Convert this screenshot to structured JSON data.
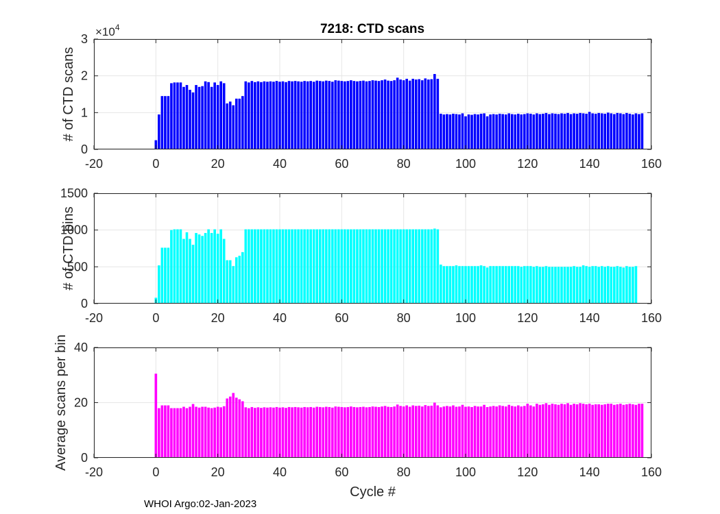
{
  "figure_title": "7218: CTD scans",
  "footer": "WHOI Argo:02-Jan-2023",
  "chart_data": [
    {
      "type": "bar",
      "name": "scans",
      "title": "7218: CTD scans",
      "xlabel": "",
      "ylabel": "# of CTD scans",
      "xlim": [
        -20,
        160
      ],
      "ylim": [
        0,
        3
      ],
      "xticks": [
        -20,
        0,
        20,
        40,
        60,
        80,
        100,
        120,
        140,
        160
      ],
      "yticks": [
        0,
        1,
        2,
        3
      ],
      "ytick_labels": [
        "0",
        "1",
        "2",
        "3"
      ],
      "y_exponent_label": "×10",
      "y_exponent_power": "4",
      "color": "#0000ff",
      "grid": true,
      "x_start": 0,
      "values": [
        0.25,
        0.95,
        1.45,
        1.45,
        1.45,
        1.8,
        1.82,
        1.82,
        1.82,
        1.7,
        1.75,
        1.62,
        1.55,
        1.75,
        1.7,
        1.72,
        1.85,
        1.83,
        1.7,
        1.82,
        1.75,
        1.85,
        1.8,
        1.25,
        1.3,
        1.2,
        1.38,
        1.38,
        1.45,
        1.85,
        1.82,
        1.86,
        1.83,
        1.85,
        1.83,
        1.85,
        1.84,
        1.85,
        1.84,
        1.86,
        1.84,
        1.85,
        1.83,
        1.86,
        1.85,
        1.86,
        1.85,
        1.84,
        1.86,
        1.85,
        1.86,
        1.84,
        1.87,
        1.86,
        1.85,
        1.87,
        1.86,
        1.84,
        1.88,
        1.87,
        1.86,
        1.85,
        1.86,
        1.88,
        1.86,
        1.85,
        1.86,
        1.87,
        1.85,
        1.86,
        1.88,
        1.87,
        1.86,
        1.88,
        1.9,
        1.87,
        1.86,
        1.88,
        1.95,
        1.9,
        1.88,
        1.92,
        1.87,
        1.92,
        1.9,
        1.91,
        1.88,
        1.93,
        1.9,
        1.91,
        2.05,
        1.92,
        0.97,
        0.95,
        0.96,
        0.95,
        0.97,
        0.96,
        0.95,
        0.98,
        0.9,
        0.95,
        0.94,
        0.96,
        0.95,
        0.97,
        0.98,
        0.9,
        0.95,
        0.96,
        0.95,
        0.97,
        0.96,
        0.95,
        0.98,
        0.96,
        0.95,
        0.97,
        0.95,
        0.96,
        0.98,
        0.97,
        0.95,
        0.98,
        0.96,
        0.97,
        0.99,
        0.96,
        0.98,
        0.97,
        0.96,
        0.98,
        0.97,
        0.99,
        0.96,
        0.98,
        0.97,
        0.99,
        0.98,
        0.97,
        1.02,
        0.98,
        0.97,
        0.99,
        0.98,
        0.97,
        1.0,
        0.98,
        0.96,
        0.99,
        0.98,
        0.96,
        0.99,
        0.97,
        0.95,
        0.98,
        0.96,
        0.98
      ]
    },
    {
      "type": "bar",
      "name": "bins",
      "title": "",
      "xlabel": "",
      "ylabel": "# of CTD bins",
      "xlim": [
        -20,
        160
      ],
      "ylim": [
        0,
        1500
      ],
      "xticks": [
        -20,
        0,
        20,
        40,
        60,
        80,
        100,
        120,
        140,
        160
      ],
      "yticks": [
        0,
        500,
        1000,
        1500
      ],
      "ytick_labels": [
        "0",
        "500",
        "1000",
        "1500"
      ],
      "color": "#00ffff",
      "grid": true,
      "x_start": 0,
      "values": [
        80,
        520,
        760,
        760,
        760,
        1000,
        1010,
        1010,
        1010,
        880,
        970,
        880,
        800,
        960,
        940,
        920,
        960,
        1010,
        960,
        1010,
        950,
        1010,
        880,
        590,
        590,
        510,
        630,
        650,
        700,
        1010,
        1010,
        1010,
        1010,
        1010,
        1010,
        1010,
        1010,
        1010,
        1010,
        1010,
        1010,
        1010,
        1010,
        1010,
        1010,
        1010,
        1010,
        1010,
        1010,
        1010,
        1010,
        1010,
        1010,
        1010,
        1010,
        1010,
        1010,
        1010,
        1010,
        1010,
        1010,
        1010,
        1010,
        1010,
        1010,
        1010,
        1010,
        1010,
        1010,
        1010,
        1010,
        1010,
        1010,
        1010,
        1010,
        1010,
        1010,
        1010,
        1010,
        1010,
        1010,
        1010,
        1010,
        1010,
        1010,
        1010,
        1010,
        1010,
        1010,
        1010,
        1020,
        1010,
        530,
        510,
        510,
        510,
        510,
        520,
        510,
        510,
        510,
        510,
        510,
        510,
        510,
        520,
        510,
        490,
        510,
        510,
        510,
        510,
        510,
        510,
        510,
        510,
        510,
        510,
        500,
        510,
        510,
        510,
        500,
        510,
        500,
        500,
        510,
        500,
        500,
        500,
        500,
        500,
        500,
        500,
        500,
        510,
        500,
        500,
        520,
        510,
        500,
        510,
        510,
        500,
        510,
        500,
        510,
        500,
        500,
        510,
        500,
        490,
        510,
        500,
        500,
        510
      ]
    },
    {
      "type": "bar",
      "name": "average",
      "title": "",
      "xlabel": "Cycle #",
      "ylabel": "Average scans per bin",
      "xlim": [
        -20,
        160
      ],
      "ylim": [
        0,
        40
      ],
      "xticks": [
        -20,
        0,
        20,
        40,
        60,
        80,
        100,
        120,
        140,
        160
      ],
      "yticks": [
        0,
        20,
        40
      ],
      "ytick_labels": [
        "0",
        "20",
        "40"
      ],
      "color": "#ff00ff",
      "grid": true,
      "x_start": 0,
      "values": [
        30.5,
        18.0,
        19.0,
        19.0,
        19.0,
        18.0,
        18.0,
        18.0,
        18.0,
        18.5,
        18.0,
        18.5,
        19.5,
        18.5,
        18.2,
        18.5,
        18.5,
        18.2,
        18.0,
        18.2,
        18.5,
        18.3,
        18.7,
        21.5,
        22.2,
        23.5,
        21.8,
        21.2,
        20.5,
        18.3,
        18.0,
        18.4,
        18.1,
        18.3,
        18.1,
        18.3,
        18.2,
        18.3,
        18.2,
        18.4,
        18.2,
        18.3,
        18.1,
        18.4,
        18.3,
        18.4,
        18.3,
        18.2,
        18.4,
        18.3,
        18.4,
        18.2,
        18.5,
        18.4,
        18.3,
        18.5,
        18.4,
        18.2,
        18.6,
        18.5,
        18.4,
        18.3,
        18.4,
        18.6,
        18.4,
        18.3,
        18.4,
        18.5,
        18.3,
        18.4,
        18.6,
        18.5,
        18.4,
        18.6,
        18.8,
        18.5,
        18.4,
        18.6,
        19.3,
        18.8,
        18.6,
        19.0,
        18.5,
        19.0,
        18.8,
        18.9,
        18.6,
        19.1,
        18.8,
        18.9,
        20.0,
        19.0,
        18.3,
        18.6,
        18.8,
        18.6,
        19.0,
        18.5,
        18.6,
        19.2,
        18.5,
        18.6,
        18.4,
        18.8,
        18.6,
        18.6,
        19.2,
        18.4,
        18.6,
        18.8,
        18.6,
        19.0,
        18.8,
        18.6,
        19.2,
        18.8,
        18.6,
        19.0,
        18.6,
        18.8,
        19.6,
        19.0,
        18.6,
        19.6,
        19.2,
        19.4,
        19.8,
        19.2,
        19.6,
        19.4,
        19.2,
        19.6,
        19.4,
        19.8,
        19.2,
        19.6,
        19.4,
        19.8,
        19.6,
        19.4,
        19.6,
        19.2,
        19.4,
        19.4,
        19.2,
        19.4,
        19.6,
        19.6,
        19.2,
        19.4,
        19.6,
        19.2,
        19.4,
        19.6,
        19.4,
        19.2,
        19.6,
        19.6
      ]
    }
  ]
}
